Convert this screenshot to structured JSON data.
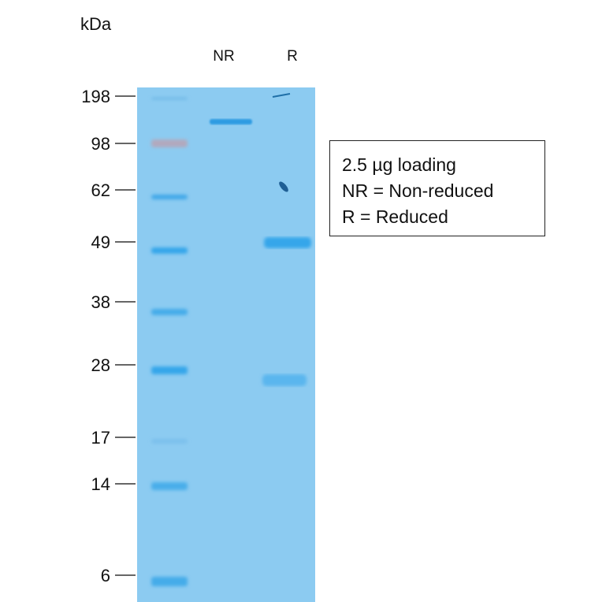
{
  "unit_label": "kDa",
  "lanes": [
    {
      "label": "NR"
    },
    {
      "label": "R"
    }
  ],
  "markers": [
    "198",
    "98",
    "62",
    "49",
    "38",
    "28",
    "17",
    "14",
    "6"
  ],
  "legend": [
    "2.5 µg loading",
    "NR = Non-reduced",
    "R = Reduced"
  ],
  "colors": {
    "gel": "#8ccbf1",
    "band": "#36a6ea",
    "dark_band": "#1f6fa8"
  }
}
